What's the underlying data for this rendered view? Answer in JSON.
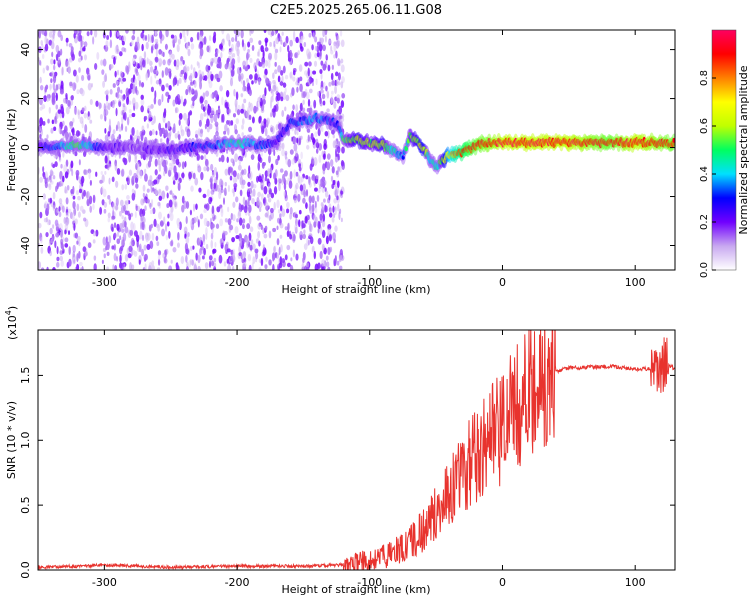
{
  "title": "C2E5.2025.265.06.11.G08",
  "chart_data": [
    {
      "type": "heatmap",
      "xlabel": "Height of straight line (km)",
      "ylabel": "Frequency (Hz)",
      "xlim": [
        -350,
        130
      ],
      "ylim": [
        -50,
        48
      ],
      "xticks": [
        -300,
        -200,
        -100,
        0,
        100
      ],
      "yticks": [
        -40,
        -20,
        0,
        20,
        40
      ],
      "xtick_labels": [
        "-300",
        "-200",
        "-100",
        "0",
        "100"
      ],
      "ytick_labels": [
        "-40",
        "-20",
        "0",
        "20",
        "40"
      ],
      "colorbar": {
        "label": "Normalized spectral amplitude",
        "range": [
          0,
          1
        ],
        "ticks": [
          0.0,
          0.2,
          0.4,
          0.6,
          0.8
        ],
        "tick_labels": [
          "0.0",
          "0.2",
          "0.4",
          "0.6",
          "0.8"
        ],
        "colors": [
          "#ffffff",
          "#c8a8f0",
          "#7000ff",
          "#0000ff",
          "#00e0ff",
          "#00ff60",
          "#c0ff00",
          "#ffff00",
          "#ff8000",
          "#ff0000",
          "#ff0060"
        ]
      },
      "noise_region_x": [
        -350,
        -120
      ],
      "signal_track": {
        "x": [
          -350,
          -320,
          -300,
          -280,
          -250,
          -220,
          -200,
          -180,
          -170,
          -160,
          -140,
          -125,
          -120,
          -110,
          -100,
          -90,
          -80,
          -75,
          -70,
          -60,
          -55,
          -50,
          -45,
          -40,
          -30,
          -20,
          -10,
          0,
          20,
          50,
          80,
          100,
          130
        ],
        "freq": [
          0,
          1,
          0,
          0,
          -1,
          1,
          2,
          1,
          3,
          10,
          12,
          10,
          3,
          3,
          2,
          1,
          -2,
          -4,
          5,
          0,
          -5,
          -8,
          -5,
          -3,
          -2,
          1,
          2,
          2,
          2,
          2,
          2,
          2,
          2
        ],
        "amplitude": [
          0.2,
          0.5,
          0.2,
          0.15,
          0.2,
          0.3,
          0.45,
          0.3,
          0.25,
          0.3,
          0.35,
          0.25,
          0.5,
          0.6,
          0.55,
          0.6,
          0.4,
          0.35,
          0.55,
          0.65,
          0.45,
          0.4,
          0.6,
          0.75,
          0.85,
          0.9,
          0.92,
          0.95,
          0.95,
          0.95,
          0.9,
          0.95,
          0.9
        ]
      }
    },
    {
      "type": "line",
      "xlabel": "Height of straight line (km)",
      "ylabel": "SNR (10 * v/v)",
      "scale_label": "(x10",
      "scale_exp": "4",
      "scale_close": ")",
      "xlim": [
        -350,
        130
      ],
      "ylim": [
        0,
        1.85
      ],
      "xticks": [
        -300,
        -200,
        -100,
        0,
        100
      ],
      "yticks": [
        0.0,
        0.5,
        1.0,
        1.5
      ],
      "xtick_labels": [
        "-300",
        "-200",
        "-100",
        "0",
        "100"
      ],
      "ytick_labels": [
        "0.0",
        "0.5",
        "1.0",
        "1.5"
      ],
      "color": "#e8332e",
      "series": [
        {
          "name": "SNR",
          "x": [
            -350,
            -320,
            -300,
            -250,
            -200,
            -150,
            -120,
            -100,
            -90,
            -80,
            -70,
            -60,
            -50,
            -40,
            -30,
            -20,
            -10,
            0,
            10,
            20,
            30,
            40,
            50,
            60,
            80,
            100,
            110,
            118,
            122,
            130
          ],
          "values": [
            0.02,
            0.03,
            0.04,
            0.02,
            0.03,
            0.03,
            0.04,
            0.07,
            0.1,
            0.15,
            0.22,
            0.3,
            0.45,
            0.6,
            0.75,
            0.88,
            1.0,
            1.1,
            1.25,
            1.35,
            1.45,
            1.53,
            1.56,
            1.56,
            1.57,
            1.55,
            1.55,
            1.5,
            1.6,
            1.55
          ]
        }
      ]
    }
  ]
}
